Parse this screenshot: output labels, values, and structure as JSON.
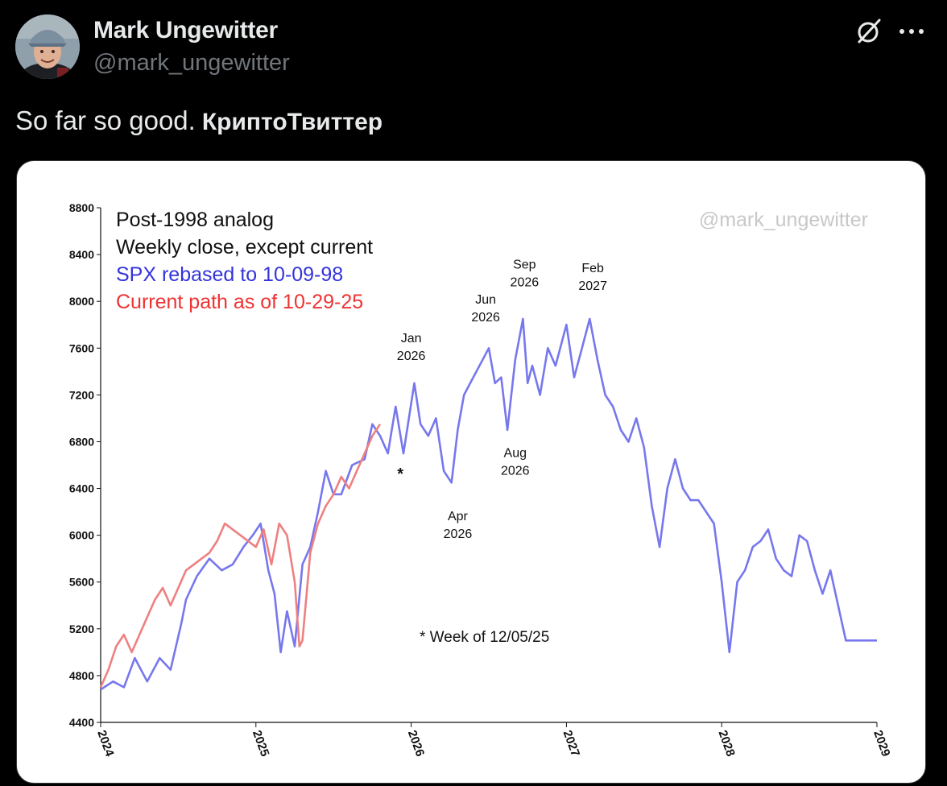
{
  "post": {
    "author_name": "Mark Ungewitter",
    "author_handle": "@mark_ungewitter",
    "text": "So far so good.",
    "link_text": "КриптоТвиттер"
  },
  "icons": {
    "grok": "grok-slash-circle-icon",
    "more": "more-dots-icon"
  },
  "colors": {
    "background": "#000000",
    "blue_series": "#7777ee",
    "red_series": "#ee8080",
    "legend_blue": "#3333dd",
    "legend_red": "#ee3333"
  },
  "chart_data": {
    "type": "line",
    "title_lines": [
      "Post-1998 analog",
      "Weekly close, except current"
    ],
    "watermark": "@mark_ungewitter",
    "ylim": [
      4400,
      8800
    ],
    "y_ticks": [
      "4400",
      "4800",
      "5200",
      "5600",
      "6000",
      "6400",
      "6800",
      "7200",
      "7600",
      "8000",
      "8400",
      "8800"
    ],
    "xlim": [
      2024,
      2029
    ],
    "x_ticks": [
      "2024",
      "2025",
      "2026",
      "2027",
      "2028",
      "2029"
    ],
    "footnote": "* Week of 12/05/25",
    "marker": {
      "label": "*",
      "x": 2025.93,
      "y": 6550
    },
    "annotations": [
      {
        "line1": "Jan",
        "line2": "2026",
        "x": 2026.0,
        "y": 7650
      },
      {
        "line1": "Apr",
        "line2": "2026",
        "x": 2026.3,
        "y": 6130
      },
      {
        "line1": "Jun",
        "line2": "2026",
        "x": 2026.48,
        "y": 7980
      },
      {
        "line1": "Aug",
        "line2": "2026",
        "x": 2026.67,
        "y": 6670
      },
      {
        "line1": "Sep",
        "line2": "2026",
        "x": 2026.73,
        "y": 8280
      },
      {
        "line1": "Feb",
        "line2": "2027",
        "x": 2027.17,
        "y": 8250
      }
    ],
    "series": [
      {
        "name": "SPX rebased to 10-09-98",
        "color": "#7777ee",
        "x": [
          2024.0,
          2024.08,
          2024.15,
          2024.22,
          2024.3,
          2024.38,
          2024.45,
          2024.52,
          2024.55,
          2024.62,
          2024.7,
          2024.78,
          2024.85,
          2024.92,
          2024.98,
          2025.03,
          2025.08,
          2025.12,
          2025.16,
          2025.2,
          2025.25,
          2025.3,
          2025.35,
          2025.4,
          2025.45,
          2025.5,
          2025.55,
          2025.62,
          2025.7,
          2025.75,
          2025.8,
          2025.85,
          2025.9,
          2025.95,
          2026.02,
          2026.06,
          2026.11,
          2026.16,
          2026.21,
          2026.26,
          2026.3,
          2026.34,
          2026.4,
          2026.46,
          2026.5,
          2026.54,
          2026.58,
          2026.62,
          2026.67,
          2026.72,
          2026.75,
          2026.78,
          2026.83,
          2026.88,
          2026.93,
          2027.0,
          2027.05,
          2027.1,
          2027.15,
          2027.2,
          2027.25,
          2027.3,
          2027.35,
          2027.4,
          2027.45,
          2027.5,
          2027.55,
          2027.6,
          2027.65,
          2027.7,
          2027.75,
          2027.8,
          2027.85,
          2027.9,
          2027.95,
          2028.0,
          2028.05,
          2028.1,
          2028.15,
          2028.2,
          2028.25,
          2028.3,
          2028.35,
          2028.4,
          2028.45,
          2028.5,
          2028.55,
          2028.6,
          2028.65,
          2028.7,
          2028.75,
          2028.8,
          2028.85,
          2028.9,
          2028.95,
          2029.0
        ],
        "values": [
          4680,
          4750,
          4700,
          4950,
          4750,
          4950,
          4850,
          5250,
          5450,
          5650,
          5800,
          5700,
          5750,
          5900,
          6000,
          6100,
          5700,
          5500,
          5000,
          5350,
          5050,
          5750,
          5900,
          6200,
          6550,
          6350,
          6350,
          6600,
          6650,
          6950,
          6850,
          6700,
          7100,
          6700,
          7300,
          6950,
          6850,
          7000,
          6550,
          6450,
          6900,
          7200,
          7350,
          7500,
          7600,
          7300,
          7350,
          6900,
          7500,
          7850,
          7300,
          7450,
          7200,
          7600,
          7450,
          7800,
          7350,
          7600,
          7850,
          7500,
          7200,
          7100,
          6900,
          6800,
          7000,
          6750,
          6250,
          5900,
          6400,
          6650,
          6400,
          6300,
          6300,
          6200,
          6100,
          5600,
          5000,
          5600,
          5700,
          5900,
          5950,
          6050,
          5800,
          5700,
          5650,
          6000,
          5950,
          5700,
          5500,
          5700,
          5400,
          5100,
          5100,
          5100,
          5100,
          5100
        ]
      },
      {
        "name": "Current path as of 10-29-25",
        "color": "#ee8080",
        "x": [
          2024.0,
          2024.05,
          2024.1,
          2024.15,
          2024.2,
          2024.25,
          2024.3,
          2024.35,
          2024.4,
          2024.45,
          2024.5,
          2024.55,
          2024.6,
          2024.65,
          2024.7,
          2024.75,
          2024.8,
          2024.85,
          2024.9,
          2024.95,
          2025.0,
          2025.05,
          2025.1,
          2025.15,
          2025.2,
          2025.25,
          2025.28,
          2025.3,
          2025.35,
          2025.4,
          2025.45,
          2025.5,
          2025.55,
          2025.6,
          2025.65,
          2025.7,
          2025.75,
          2025.8
        ],
        "values": [
          4700,
          4850,
          5050,
          5150,
          5000,
          5150,
          5300,
          5450,
          5550,
          5400,
          5550,
          5700,
          5750,
          5800,
          5850,
          5950,
          6100,
          6050,
          6000,
          5950,
          5900,
          6050,
          5750,
          6100,
          6000,
          5600,
          5050,
          5100,
          5850,
          6100,
          6250,
          6350,
          6500,
          6400,
          6550,
          6700,
          6850,
          6950
        ]
      }
    ]
  }
}
